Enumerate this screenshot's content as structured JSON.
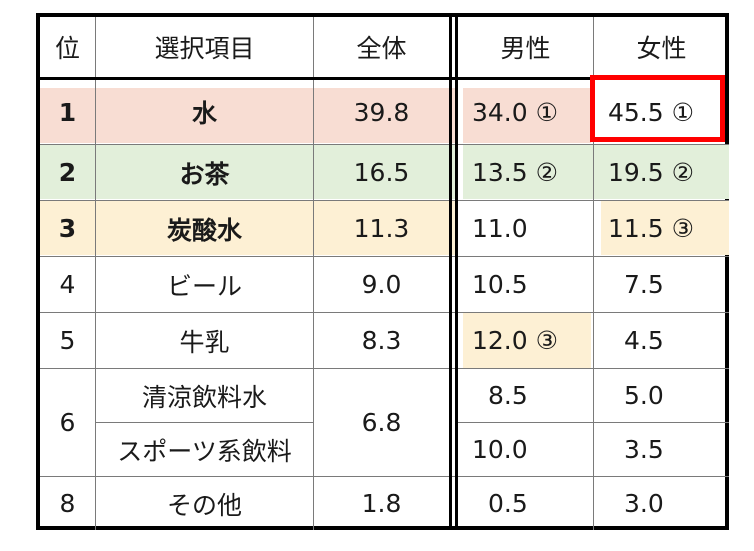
{
  "colors": {
    "row1_bg": "#f8ddd3",
    "row2_bg": "#e2efda",
    "row3_bg": "#fdf0d4",
    "highlight_border": "#ff0000"
  },
  "header": {
    "rank": "位",
    "item": "選択項目",
    "total": "全体",
    "male": "男性",
    "female": "女性"
  },
  "rows": [
    {
      "rank": "1",
      "item": "水",
      "total": "39.8",
      "male": "34.0 ①",
      "female": "45.5 ①"
    },
    {
      "rank": "2",
      "item": "お茶",
      "total": "16.5",
      "male": "13.5 ②",
      "female": "19.5 ②"
    },
    {
      "rank": "3",
      "item": "炭酸水",
      "total": "11.3",
      "male": "11.0",
      "female": "11.5 ③"
    },
    {
      "rank": "4",
      "item": "ビール",
      "total": "9.0",
      "male": "10.5",
      "female": "7.5"
    },
    {
      "rank": "5",
      "item": "牛乳",
      "total": "8.3",
      "male": "12.0 ③",
      "female": "4.5"
    },
    {
      "rank": "6",
      "item": "清涼飲料水",
      "total": "6.8",
      "male": "8.5",
      "female": "5.0"
    },
    {
      "item": "スポーツ系飲料",
      "male": "10.0",
      "female": "3.5"
    },
    {
      "rank": "8",
      "item": "その他",
      "total": "1.8",
      "male": "0.5",
      "female": "3.0"
    }
  ]
}
